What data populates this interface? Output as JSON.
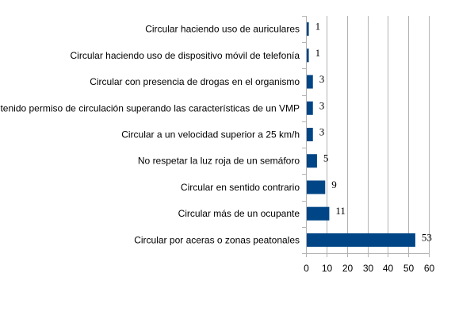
{
  "chart_data": {
    "type": "bar",
    "orientation": "horizontal",
    "categories": [
      "Circular haciendo uso de auriculares",
      "Circular haciendo uso de dispositivo móvil de telefonía",
      "Circular con presencia de drogas en el organismo",
      "Circular sin haber obtenido permiso de circulación superando las características de un VMP",
      "Circular a un velocidad superior a 25 km/h",
      "No respetar la luz roja de un semáforo",
      "Circular en sentido contrario",
      "Circular más de un ocupante",
      "Circular por aceras o zonas peatonales"
    ],
    "values": [
      1,
      1,
      3,
      3,
      3,
      5,
      9,
      11,
      53
    ],
    "xlim": [
      0,
      60
    ],
    "xticks": [
      0,
      10,
      20,
      30,
      40,
      50,
      60
    ],
    "grid": true,
    "bar_color": "#004586",
    "data_labels": true
  }
}
